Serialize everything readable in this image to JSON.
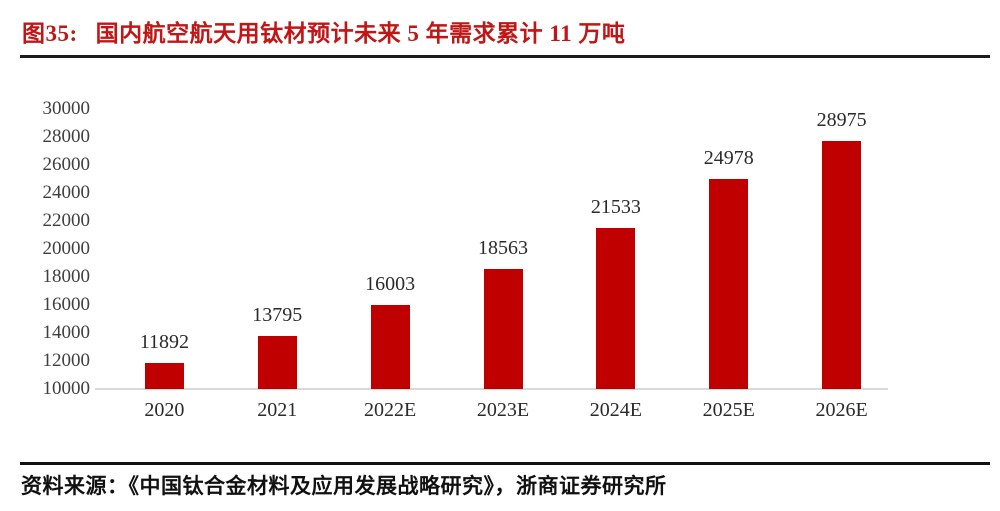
{
  "header": {
    "figure_label": "图35:",
    "title": "国内航空航天用钛材预计未来 5 年需求累计 11 万吨"
  },
  "footer": {
    "source": "资料来源：《中国钛合金材料及应用发展战略研究》，浙商证券研究所"
  },
  "colors": {
    "bar": "#C00000",
    "title_red": "#C01616",
    "axis_text": "#3F3F3F",
    "baseline_gray": "#D8D8D8",
    "rule_dark": "#1B1B1B"
  },
  "chart_data": {
    "type": "bar",
    "title": "国内航空航天用钛材预计未来 5 年需求累计 11 万吨",
    "categories": [
      "2020",
      "2021",
      "2022E",
      "2023E",
      "2024E",
      "2025E",
      "2026E"
    ],
    "values": [
      11892,
      13795,
      16003,
      18563,
      21533,
      24978,
      28975
    ],
    "xlabel": "",
    "ylabel": "",
    "unit": "吨",
    "ylim": [
      10000,
      30000
    ],
    "yticks": [
      10000,
      12000,
      14000,
      16000,
      18000,
      20000,
      22000,
      24000,
      26000,
      28000,
      30000
    ],
    "grid": false,
    "legend": false,
    "bar_color": "#C00000",
    "data_labels": true
  }
}
